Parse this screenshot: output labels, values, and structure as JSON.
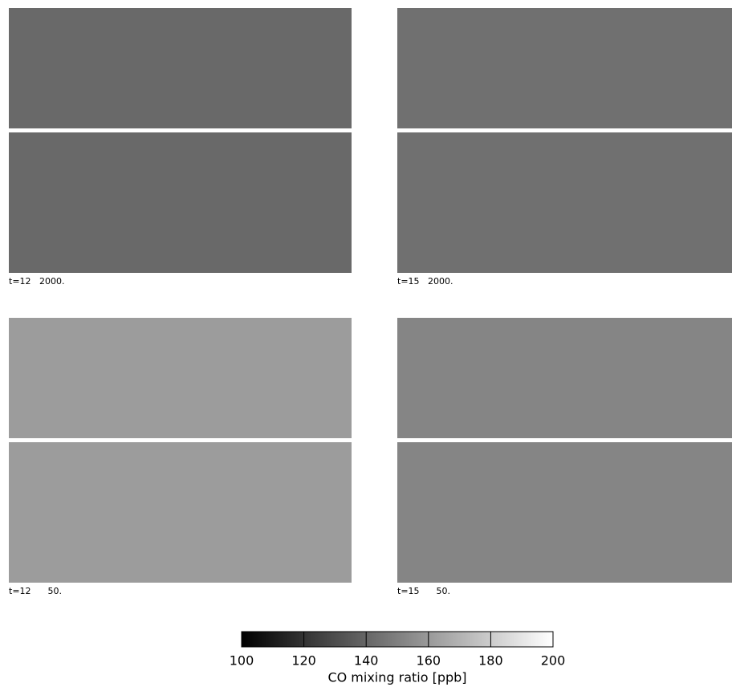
{
  "chart_data": {
    "type": "panels",
    "colormap": "gray",
    "panels": [
      {
        "label": "t=12   2000.",
        "value": 141
      },
      {
        "label": "t=15   2000.",
        "value": 144
      },
      {
        "label": "t=12      50.",
        "value": 161
      },
      {
        "label": "t=15      50.",
        "value": 152
      }
    ],
    "colorbar": {
      "label": "CO mixing ratio [ppb]",
      "lim": [
        100,
        200
      ],
      "ticks": [
        100,
        120,
        140,
        160,
        180,
        200
      ]
    }
  }
}
